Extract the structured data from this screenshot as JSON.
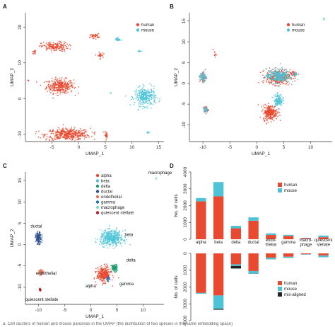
{
  "caption": "a. Cell clusters of human and mouse pancreas in the UMAP (the distribution of two species in the same embedding space)",
  "colors": {
    "human": "#e8492f",
    "mouse": "#4ec3d6",
    "misaligned": "#222222",
    "alpha": "#e8492f",
    "beta": "#4ec3d6",
    "delta": "#1d9a6c",
    "ductal": "#2b4f8f",
    "endothelial": "#e9735a",
    "gamma": "#1f6fb5",
    "macrophage": "#7be0c0",
    "quiescent_stellate": "#c0182a"
  },
  "chart_data": [
    {
      "type": "scatter",
      "panel": "A",
      "xlabel": "UMAP_1",
      "ylabel": "UMAP_2",
      "xlim": [
        -10,
        16
      ],
      "ylim": [
        -12,
        24
      ],
      "xticks": [
        -5,
        0,
        5,
        10,
        15
      ],
      "yticks": [
        -10,
        0,
        10,
        20
      ],
      "legend": [
        {
          "name": "human"
        },
        {
          "name": "mouse"
        }
      ],
      "legend_position": "top-right",
      "clusters": [
        {
          "series": "human",
          "cx": -3.5,
          "cy": 3.5,
          "sx": 2.3,
          "sy": 1.8,
          "n": 320
        },
        {
          "series": "human",
          "cx": -2.0,
          "cy": -10.0,
          "sx": 3.8,
          "sy": 1.5,
          "n": 420
        },
        {
          "series": "human",
          "cx": -4.5,
          "cy": 14.5,
          "sx": 2.3,
          "sy": 1.2,
          "n": 170
        },
        {
          "series": "human",
          "cx": 3.0,
          "cy": 17.5,
          "sx": 0.8,
          "sy": 0.6,
          "n": 40
        },
        {
          "series": "human",
          "cx": -8.3,
          "cy": 13.0,
          "sx": 0.3,
          "sy": 0.5,
          "n": 15
        },
        {
          "series": "human",
          "cx": 4.0,
          "cy": 12.0,
          "sx": 0.5,
          "sy": 0.8,
          "n": 25
        },
        {
          "series": "human",
          "cx": 5.2,
          "cy": -10.2,
          "sx": 0.3,
          "sy": 0.8,
          "n": 25
        },
        {
          "series": "human",
          "cx": -9.5,
          "cy": 5.0,
          "sx": 0.1,
          "sy": 0.2,
          "n": 4
        },
        {
          "series": "mouse",
          "cx": 12.5,
          "cy": 0.5,
          "sx": 1.8,
          "sy": 2.3,
          "n": 300
        },
        {
          "series": "mouse",
          "cx": 7.3,
          "cy": 16.5,
          "sx": 0.5,
          "sy": 0.5,
          "n": 30
        },
        {
          "series": "mouse",
          "cx": 11.5,
          "cy": 13.3,
          "sx": 0.3,
          "sy": 0.2,
          "n": 10
        },
        {
          "series": "mouse",
          "cx": 13.0,
          "cy": -9.5,
          "sx": 0.3,
          "sy": 0.3,
          "n": 8
        },
        {
          "series": "mouse",
          "cx": 6.0,
          "cy": 1.5,
          "sx": 0.1,
          "sy": 0.1,
          "n": 3
        }
      ]
    },
    {
      "type": "scatter",
      "panel": "B",
      "xlabel": "UMAP_1",
      "ylabel": "UMAP_2",
      "xlim": [
        -12.5,
        14
      ],
      "ylim": [
        -14,
        17
      ],
      "xticks": [
        -10,
        -5,
        0,
        5,
        10
      ],
      "yticks": [
        -10,
        -5,
        0,
        5,
        10,
        15
      ],
      "legend": [
        {
          "name": "human"
        },
        {
          "name": "mouse"
        }
      ],
      "legend_position": "top-right",
      "clusters": [
        {
          "series": "human",
          "cx": 4.0,
          "cy": 1.5,
          "sx": 2.0,
          "sy": 1.6,
          "n": 380
        },
        {
          "series": "human",
          "cx": 2.5,
          "cy": -7.0,
          "sx": 1.2,
          "sy": 1.6,
          "n": 260
        },
        {
          "series": "human",
          "cx": -10.0,
          "cy": 1.5,
          "sx": 0.5,
          "sy": 1.2,
          "n": 60
        },
        {
          "series": "human",
          "cx": -9.5,
          "cy": -6.3,
          "sx": 0.4,
          "sy": 0.7,
          "n": 40
        },
        {
          "series": "human",
          "cx": -7.8,
          "cy": 7.0,
          "sx": 0.3,
          "sy": 0.6,
          "n": 12
        },
        {
          "series": "human",
          "cx": 7.0,
          "cy": 2.3,
          "sx": 0.5,
          "sy": 0.5,
          "n": 30
        },
        {
          "series": "mouse",
          "cx": 4.0,
          "cy": 1.8,
          "sx": 2.0,
          "sy": 1.5,
          "n": 300
        },
        {
          "series": "mouse",
          "cx": 4.0,
          "cy": -4.0,
          "sx": 0.7,
          "sy": 1.3,
          "n": 130
        },
        {
          "series": "mouse",
          "cx": -10.0,
          "cy": 1.5,
          "sx": 0.5,
          "sy": 1.2,
          "n": 70
        },
        {
          "series": "mouse",
          "cx": -9.5,
          "cy": -6.3,
          "sx": 0.4,
          "sy": 0.6,
          "n": 30
        },
        {
          "series": "mouse",
          "cx": 12.5,
          "cy": 15.5,
          "sx": 0.1,
          "sy": 0.2,
          "n": 5
        },
        {
          "series": "mouse",
          "cx": 7.2,
          "cy": 2.3,
          "sx": 0.4,
          "sy": 0.4,
          "n": 15
        }
      ]
    },
    {
      "type": "scatter",
      "panel": "C",
      "xlabel": "UMAP_1",
      "ylabel": "UMAP_2",
      "xlim": [
        -12.5,
        14
      ],
      "ylim": [
        -14,
        17
      ],
      "xticks": [
        -10,
        -5,
        0,
        5,
        10
      ],
      "yticks": [
        -10,
        -5,
        0,
        5,
        10,
        15
      ],
      "legend": [
        {
          "name": "alpha"
        },
        {
          "name": "beta"
        },
        {
          "name": "delta"
        },
        {
          "name": "ductal"
        },
        {
          "name": "endothelial"
        },
        {
          "name": "gamma"
        },
        {
          "name": "macrophage"
        },
        {
          "name": "quiescent stellate"
        }
      ],
      "legend_position": "top-left",
      "annotations": [
        {
          "text": "macrophage",
          "x": 11.0,
          "y": 16.5
        },
        {
          "text": "ductal",
          "x": -11.5,
          "y": 4.0
        },
        {
          "text": "beta",
          "x": 6.5,
          "y": 2.0
        },
        {
          "text": "delta",
          "x": 6.8,
          "y": -4.0
        },
        {
          "text": "gamma",
          "x": 5.5,
          "y": -9.5
        },
        {
          "text": "alpha",
          "x": -1.0,
          "y": -10.0
        },
        {
          "text": "endothelial",
          "x": -10.5,
          "y": -7.0
        },
        {
          "text": "quiescent stellate",
          "x": -12.5,
          "y": -13.2
        }
      ],
      "clusters": [
        {
          "series": "beta",
          "cx": 4.0,
          "cy": 1.5,
          "sx": 2.0,
          "sy": 1.6,
          "n": 420
        },
        {
          "series": "alpha",
          "cx": 2.5,
          "cy": -7.0,
          "sx": 1.2,
          "sy": 1.6,
          "n": 300
        },
        {
          "series": "delta",
          "cx": 4.5,
          "cy": -5.5,
          "sx": 0.5,
          "sy": 0.8,
          "n": 90
        },
        {
          "series": "gamma",
          "cx": 3.3,
          "cy": -8.0,
          "sx": 0.3,
          "sy": 0.5,
          "n": 25
        },
        {
          "series": "ductal",
          "cx": -10.0,
          "cy": 1.5,
          "sx": 0.5,
          "sy": 1.2,
          "n": 130
        },
        {
          "series": "endothelial",
          "cx": -9.5,
          "cy": -6.5,
          "sx": 0.4,
          "sy": 0.6,
          "n": 60
        },
        {
          "series": "quiescent_stellate",
          "cx": -9.7,
          "cy": -10.5,
          "sx": 0.2,
          "sy": 0.3,
          "n": 20
        },
        {
          "series": "macrophage",
          "cx": 12.5,
          "cy": 15.5,
          "sx": 0.1,
          "sy": 0.2,
          "n": 5
        }
      ]
    },
    {
      "type": "bar",
      "panel": "D",
      "stacked": true,
      "ylabel_top": "No. of cells",
      "ylabel_bottom": "No. of cells",
      "ylim": [
        0,
        4000
      ],
      "yticks": [
        0,
        1000,
        2000,
        3000,
        4000
      ],
      "categories": [
        "alpha",
        "beta",
        "delta",
        "ductal",
        "endo-\nthelial",
        "gamma",
        "macro-\nphage",
        "quiescent\nstellate"
      ],
      "top": {
        "legend": [
          "human",
          "mouse"
        ],
        "series": [
          {
            "name": "human",
            "values": [
              2250,
              2550,
              650,
              1100,
              250,
              200,
              60,
              120
            ]
          },
          {
            "name": "mouse",
            "values": [
              200,
              850,
              150,
              200,
              100,
              60,
              20,
              100
            ]
          }
        ]
      },
      "bottom": {
        "legend": [
          "human",
          "mouse",
          "mis-aligned"
        ],
        "series": [
          {
            "name": "human",
            "values": [
              2350,
              2500,
              650,
              1050,
              250,
              200,
              50,
              120
            ]
          },
          {
            "name": "mouse",
            "values": [
              50,
              800,
              100,
              150,
              100,
              60,
              20,
              100
            ]
          },
          {
            "name": "mis-aligned",
            "values": [
              0,
              50,
              150,
              10,
              5,
              5,
              5,
              5
            ]
          }
        ]
      }
    }
  ]
}
